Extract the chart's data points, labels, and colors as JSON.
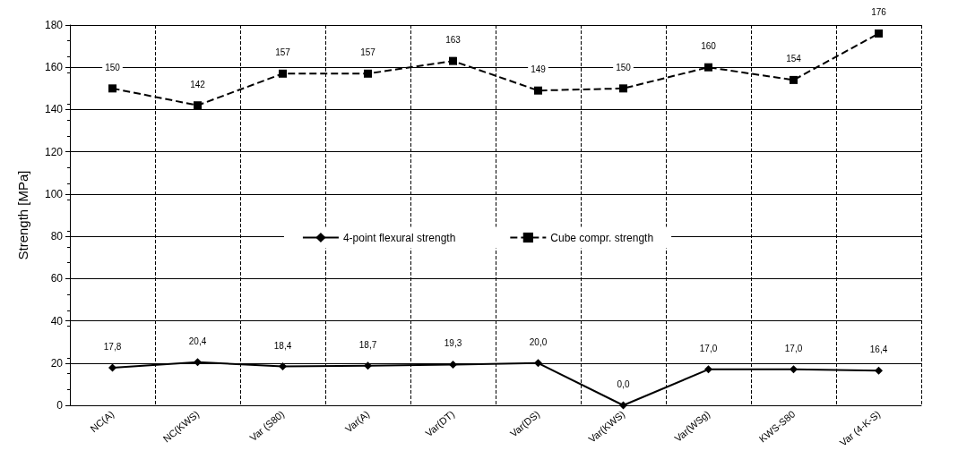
{
  "chart_data": {
    "type": "line",
    "ylabel": "Strength [MPa]",
    "categories": [
      "NC(A)",
      "NC(KWS)",
      "Var (S80)",
      "Var(A)",
      "Var(DT)",
      "Var(DS)",
      "Var(KWS)",
      "Var(WSg)",
      "KWS-S80",
      "Var (4-K-S)"
    ],
    "series": [
      {
        "name": "4-point flexural strength",
        "color": "#000000",
        "marker": "diamond",
        "line_style": "solid",
        "values": [
          17.8,
          20.4,
          18.4,
          18.7,
          19.3,
          20.0,
          0.0,
          17.0,
          17.0,
          16.4
        ],
        "value_labels": [
          "17,8",
          "20,4",
          "18,4",
          "18,7",
          "19,3",
          "20,0",
          "0,0",
          "17,0",
          "17,0",
          "16,4"
        ]
      },
      {
        "name": "Cube compr. strength",
        "color": "#000000",
        "marker": "square",
        "line_style": "dashed",
        "values": [
          150,
          142,
          157,
          157,
          163,
          149,
          150,
          160,
          154,
          176
        ],
        "value_labels": [
          "150",
          "142",
          "157",
          "157",
          "163",
          "149",
          "150",
          "160",
          "154",
          "176"
        ]
      }
    ],
    "ylim": [
      0,
      180
    ],
    "yticks": [
      0,
      20,
      40,
      60,
      80,
      100,
      120,
      140,
      160,
      180
    ],
    "grid": true,
    "legend": "center"
  }
}
